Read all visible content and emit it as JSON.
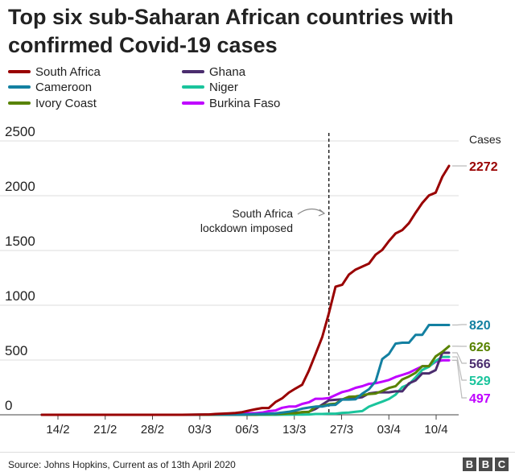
{
  "title": "Top six sub-Saharan African countries with confirmed Covid-19 cases",
  "source": "Source: Johns Hopkins, Current as of 13th April 2020",
  "brand": [
    "B",
    "B",
    "C"
  ],
  "chart_data": {
    "type": "line",
    "title": "Top six sub-Saharan African countries with confirmed Covid-19 cases",
    "ylabel": "Cases",
    "ylim": [
      0,
      2500
    ],
    "yticks": [
      0,
      500,
      1000,
      1500,
      2000,
      2500
    ],
    "xticks": [
      "14/2",
      "21/2",
      "28/2",
      "03/3",
      "06/3",
      "13/3",
      "27/3",
      "03/4",
      "10/4"
    ],
    "x_range": [
      "2020-02-12",
      "2020-04-13"
    ],
    "grid": true,
    "legend_position": "top",
    "annotation": {
      "text_lines": [
        "South Africa",
        "lockdown imposed"
      ],
      "date": "2020-03-26"
    },
    "series": [
      {
        "name": "South Africa",
        "color": "#990000",
        "end_label": "2272",
        "points": [
          [
            "2020-02-12",
            0
          ],
          [
            "2020-03-04",
            0
          ],
          [
            "2020-03-05",
            1
          ],
          [
            "2020-03-08",
            3
          ],
          [
            "2020-03-09",
            7
          ],
          [
            "2020-03-11",
            13
          ],
          [
            "2020-03-12",
            17
          ],
          [
            "2020-03-13",
            24
          ],
          [
            "2020-03-14",
            38
          ],
          [
            "2020-03-15",
            51
          ],
          [
            "2020-03-16",
            62
          ],
          [
            "2020-03-17",
            62
          ],
          [
            "2020-03-18",
            116
          ],
          [
            "2020-03-19",
            150
          ],
          [
            "2020-03-20",
            202
          ],
          [
            "2020-03-21",
            240
          ],
          [
            "2020-03-22",
            274
          ],
          [
            "2020-03-23",
            402
          ],
          [
            "2020-03-24",
            554
          ],
          [
            "2020-03-25",
            709
          ],
          [
            "2020-03-26",
            927
          ],
          [
            "2020-03-27",
            1170
          ],
          [
            "2020-03-28",
            1187
          ],
          [
            "2020-03-29",
            1280
          ],
          [
            "2020-03-30",
            1326
          ],
          [
            "2020-03-31",
            1353
          ],
          [
            "2020-04-01",
            1380
          ],
          [
            "2020-04-02",
            1462
          ],
          [
            "2020-04-03",
            1505
          ],
          [
            "2020-04-04",
            1585
          ],
          [
            "2020-04-05",
            1655
          ],
          [
            "2020-04-06",
            1686
          ],
          [
            "2020-04-07",
            1749
          ],
          [
            "2020-04-08",
            1845
          ],
          [
            "2020-04-09",
            1934
          ],
          [
            "2020-04-10",
            2003
          ],
          [
            "2020-04-11",
            2028
          ],
          [
            "2020-04-12",
            2173
          ],
          [
            "2020-04-13",
            2272
          ]
        ]
      },
      {
        "name": "Cameroon",
        "color": "#1380a1",
        "end_label": "820",
        "points": [
          [
            "2020-02-12",
            0
          ],
          [
            "2020-03-05",
            0
          ],
          [
            "2020-03-06",
            1
          ],
          [
            "2020-03-07",
            2
          ],
          [
            "2020-03-13",
            2
          ],
          [
            "2020-03-17",
            10
          ],
          [
            "2020-03-18",
            13
          ],
          [
            "2020-03-19",
            20
          ],
          [
            "2020-03-20",
            27
          ],
          [
            "2020-03-21",
            40
          ],
          [
            "2020-03-22",
            56
          ],
          [
            "2020-03-23",
            66
          ],
          [
            "2020-03-24",
            75
          ],
          [
            "2020-03-25",
            75
          ],
          [
            "2020-03-26",
            88
          ],
          [
            "2020-03-27",
            91
          ],
          [
            "2020-03-28",
            139
          ],
          [
            "2020-03-29",
            139
          ],
          [
            "2020-03-30",
            142
          ],
          [
            "2020-03-31",
            193
          ],
          [
            "2020-04-01",
            233
          ],
          [
            "2020-04-02",
            306
          ],
          [
            "2020-04-03",
            509
          ],
          [
            "2020-04-04",
            555
          ],
          [
            "2020-04-05",
            650
          ],
          [
            "2020-04-06",
            658
          ],
          [
            "2020-04-07",
            658
          ],
          [
            "2020-04-08",
            730
          ],
          [
            "2020-04-09",
            730
          ],
          [
            "2020-04-10",
            820
          ],
          [
            "2020-04-11",
            820
          ],
          [
            "2020-04-12",
            820
          ],
          [
            "2020-04-13",
            820
          ]
        ]
      },
      {
        "name": "Ivory Coast",
        "color": "#588300",
        "end_label": "626",
        "points": [
          [
            "2020-02-12",
            0
          ],
          [
            "2020-03-10",
            0
          ],
          [
            "2020-03-11",
            1
          ],
          [
            "2020-03-15",
            1
          ],
          [
            "2020-03-16",
            5
          ],
          [
            "2020-03-17",
            6
          ],
          [
            "2020-03-18",
            9
          ],
          [
            "2020-03-19",
            9
          ],
          [
            "2020-03-20",
            14
          ],
          [
            "2020-03-21",
            14
          ],
          [
            "2020-03-22",
            25
          ],
          [
            "2020-03-23",
            25
          ],
          [
            "2020-03-24",
            73
          ],
          [
            "2020-03-25",
            80
          ],
          [
            "2020-03-26",
            96
          ],
          [
            "2020-03-27",
            101
          ],
          [
            "2020-03-28",
            140
          ],
          [
            "2020-03-29",
            165
          ],
          [
            "2020-03-30",
            168
          ],
          [
            "2020-03-31",
            179
          ],
          [
            "2020-04-01",
            190
          ],
          [
            "2020-04-02",
            194
          ],
          [
            "2020-04-03",
            218
          ],
          [
            "2020-04-04",
            245
          ],
          [
            "2020-04-05",
            261
          ],
          [
            "2020-04-06",
            323
          ],
          [
            "2020-04-07",
            349
          ],
          [
            "2020-04-08",
            384
          ],
          [
            "2020-04-09",
            444
          ],
          [
            "2020-04-10",
            444
          ],
          [
            "2020-04-11",
            533
          ],
          [
            "2020-04-12",
            574
          ],
          [
            "2020-04-13",
            626
          ]
        ]
      },
      {
        "name": "Ghana",
        "color": "#4b2d6e",
        "end_label": "566",
        "points": [
          [
            "2020-02-12",
            0
          ],
          [
            "2020-03-12",
            0
          ],
          [
            "2020-03-13",
            2
          ],
          [
            "2020-03-14",
            2
          ],
          [
            "2020-03-15",
            6
          ],
          [
            "2020-03-16",
            6
          ],
          [
            "2020-03-17",
            7
          ],
          [
            "2020-03-18",
            7
          ],
          [
            "2020-03-19",
            11
          ],
          [
            "2020-03-20",
            16
          ],
          [
            "2020-03-21",
            19
          ],
          [
            "2020-03-22",
            23
          ],
          [
            "2020-03-23",
            27
          ],
          [
            "2020-03-24",
            53
          ],
          [
            "2020-03-25",
            93
          ],
          [
            "2020-03-26",
            132
          ],
          [
            "2020-03-27",
            137
          ],
          [
            "2020-03-28",
            141
          ],
          [
            "2020-03-29",
            152
          ],
          [
            "2020-03-30",
            152
          ],
          [
            "2020-03-31",
            161
          ],
          [
            "2020-04-01",
            195
          ],
          [
            "2020-04-02",
            204
          ],
          [
            "2020-04-03",
            205
          ],
          [
            "2020-04-04",
            205
          ],
          [
            "2020-04-05",
            214
          ],
          [
            "2020-04-06",
            214
          ],
          [
            "2020-04-07",
            287
          ],
          [
            "2020-04-08",
            313
          ],
          [
            "2020-04-09",
            378
          ],
          [
            "2020-04-10",
            378
          ],
          [
            "2020-04-11",
            408
          ],
          [
            "2020-04-12",
            566
          ],
          [
            "2020-04-13",
            566
          ]
        ]
      },
      {
        "name": "Niger",
        "color": "#1ac49c",
        "end_label": "529",
        "points": [
          [
            "2020-02-12",
            0
          ],
          [
            "2020-03-18",
            0
          ],
          [
            "2020-03-19",
            1
          ],
          [
            "2020-03-21",
            2
          ],
          [
            "2020-03-22",
            2
          ],
          [
            "2020-03-23",
            3
          ],
          [
            "2020-03-24",
            7
          ],
          [
            "2020-03-25",
            7
          ],
          [
            "2020-03-26",
            10
          ],
          [
            "2020-03-27",
            10
          ],
          [
            "2020-03-28",
            18
          ],
          [
            "2020-03-29",
            20
          ],
          [
            "2020-03-30",
            27
          ],
          [
            "2020-03-31",
            34
          ],
          [
            "2020-04-01",
            74
          ],
          [
            "2020-04-02",
            98
          ],
          [
            "2020-04-03",
            120
          ],
          [
            "2020-04-04",
            144
          ],
          [
            "2020-04-05",
            184
          ],
          [
            "2020-04-06",
            253
          ],
          [
            "2020-04-07",
            278
          ],
          [
            "2020-04-08",
            342
          ],
          [
            "2020-04-09",
            410
          ],
          [
            "2020-04-10",
            438
          ],
          [
            "2020-04-11",
            491
          ],
          [
            "2020-04-12",
            529
          ],
          [
            "2020-04-13",
            529
          ]
        ]
      },
      {
        "name": "Burkina Faso",
        "color": "#bf00ff",
        "end_label": "497",
        "points": [
          [
            "2020-02-12",
            0
          ],
          [
            "2020-03-08",
            0
          ],
          [
            "2020-03-09",
            2
          ],
          [
            "2020-03-11",
            2
          ],
          [
            "2020-03-12",
            3
          ],
          [
            "2020-03-14",
            15
          ],
          [
            "2020-03-15",
            15
          ],
          [
            "2020-03-16",
            20
          ],
          [
            "2020-03-17",
            33
          ],
          [
            "2020-03-18",
            40
          ],
          [
            "2020-03-19",
            64
          ],
          [
            "2020-03-20",
            75
          ],
          [
            "2020-03-21",
            75
          ],
          [
            "2020-03-22",
            99
          ],
          [
            "2020-03-23",
            114
          ],
          [
            "2020-03-24",
            146
          ],
          [
            "2020-03-25",
            146
          ],
          [
            "2020-03-26",
            152
          ],
          [
            "2020-03-27",
            180
          ],
          [
            "2020-03-28",
            207
          ],
          [
            "2020-03-29",
            222
          ],
          [
            "2020-03-30",
            246
          ],
          [
            "2020-03-31",
            261
          ],
          [
            "2020-04-01",
            282
          ],
          [
            "2020-04-02",
            288
          ],
          [
            "2020-04-03",
            302
          ],
          [
            "2020-04-04",
            318
          ],
          [
            "2020-04-05",
            345
          ],
          [
            "2020-04-06",
            364
          ],
          [
            "2020-04-07",
            384
          ],
          [
            "2020-04-08",
            414
          ],
          [
            "2020-04-09",
            443
          ],
          [
            "2020-04-10",
            443
          ],
          [
            "2020-04-11",
            484
          ],
          [
            "2020-04-12",
            497
          ],
          [
            "2020-04-13",
            497
          ]
        ]
      }
    ]
  }
}
